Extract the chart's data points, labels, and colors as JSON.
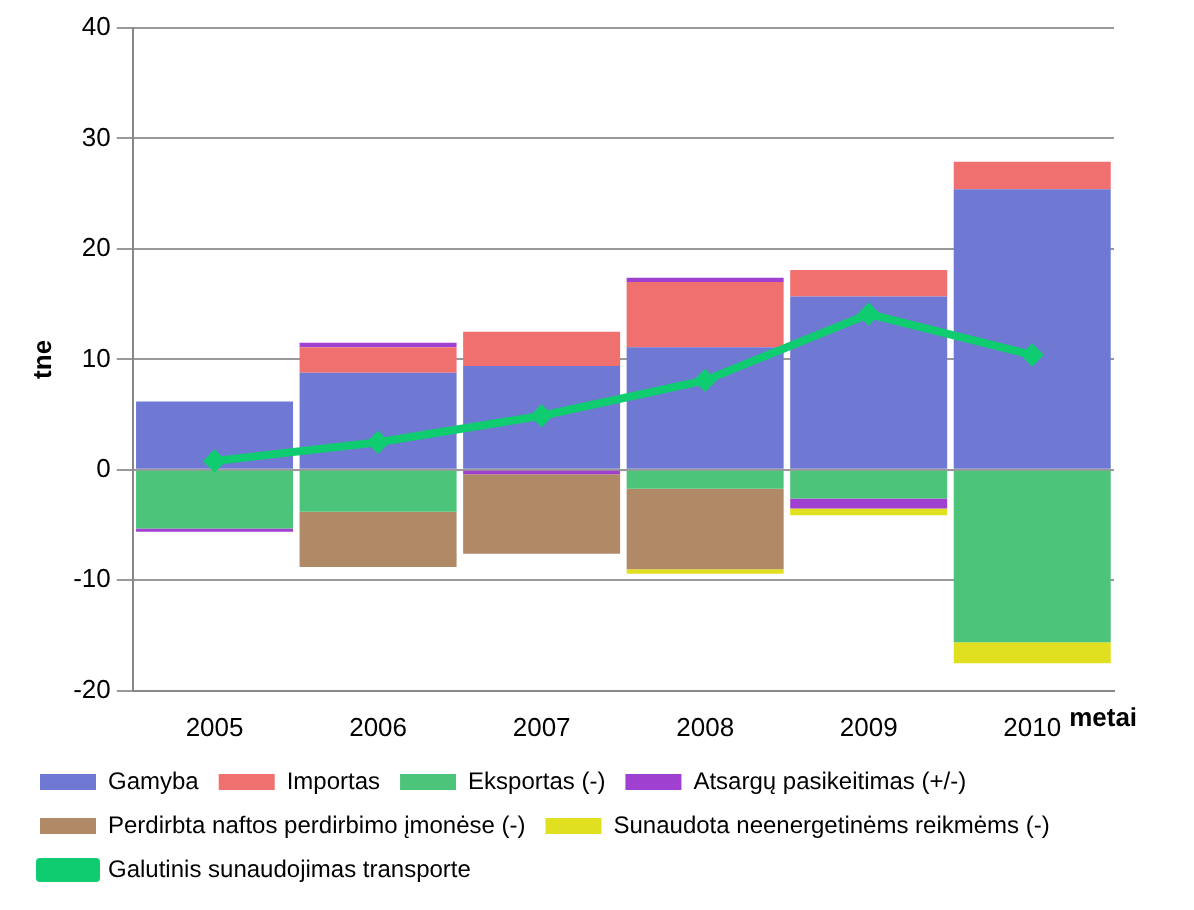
{
  "chart_data": {
    "type": "bar",
    "stacked": true,
    "xlabel": "metai",
    "ylabel": "tne",
    "categories": [
      "2005",
      "2006",
      "2007",
      "2008",
      "2009",
      "2010"
    ],
    "ylim": [
      -20,
      40
    ],
    "yticks": [
      -20,
      -10,
      0,
      10,
      20,
      30,
      40
    ],
    "grid": "y",
    "legend": "bottom",
    "series": [
      {
        "name": "Gamyba",
        "color": "#6f78d2",
        "values": [
          6.2,
          8.8,
          9.4,
          11.1,
          15.7,
          25.4
        ]
      },
      {
        "name": "Importas",
        "color": "#f07070",
        "values": [
          null,
          2.3,
          3.1,
          5.9,
          2.4,
          2.5
        ]
      },
      {
        "name": "Eksportas (-)",
        "color": "#4cc47a",
        "values": [
          -5.3,
          -3.8,
          null,
          -1.7,
          -2.6,
          -15.6
        ]
      },
      {
        "name": "Atsargų pasikeitimas (+/-)",
        "color": "#a040d0",
        "values": [
          -0.3,
          0.4,
          -0.4,
          0.4,
          -0.9,
          null
        ]
      },
      {
        "name": "Perdirbta naftos perdirbimo įmonėse (-)",
        "color": "#b08a66",
        "values": [
          null,
          -5.0,
          -7.2,
          -7.3,
          null,
          null
        ]
      },
      {
        "name": "Sunaudota neenergetinėms reikmėms (-)",
        "color": "#e0e020",
        "values": [
          null,
          null,
          null,
          -0.4,
          -0.6,
          -1.9
        ]
      },
      {
        "name": "Galutinis sunaudojimas transporte",
        "type": "line",
        "color": "#10cc70",
        "marker": "diamond",
        "values": [
          0.8,
          2.5,
          4.9,
          8.1,
          14.1,
          10.4
        ]
      }
    ]
  }
}
